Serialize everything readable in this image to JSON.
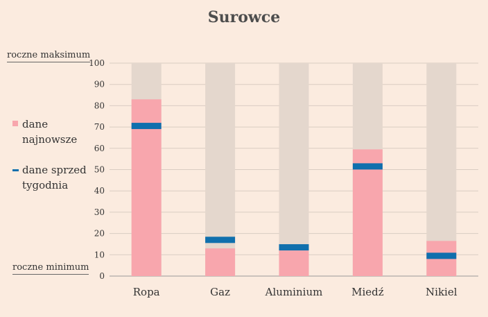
{
  "chart_data": {
    "type": "bar",
    "title": "Surowce",
    "categories": [
      "Ropa",
      "Gaz",
      "Aluminium",
      "Miedź",
      "Nikiel"
    ],
    "series": [
      {
        "name": "dane najnowsze",
        "values": [
          83,
          13,
          12,
          59.5,
          16.5
        ],
        "color": "#f8a6ad"
      },
      {
        "name": "dane sprzed tygodnia",
        "values": [
          70.5,
          17,
          13.5,
          51.5,
          9.5
        ],
        "color": "#0f6fad"
      }
    ],
    "range_background": {
      "min": 0,
      "max": 100,
      "color": "#e4d7cd"
    },
    "ylim": [
      0,
      100
    ],
    "yticks": [
      0,
      10,
      20,
      30,
      40,
      50,
      60,
      70,
      80,
      90,
      100
    ],
    "grid": true,
    "legend_position": "left",
    "annotations": {
      "max_label": "roczne maksimum",
      "min_label": "roczne minimum"
    }
  }
}
